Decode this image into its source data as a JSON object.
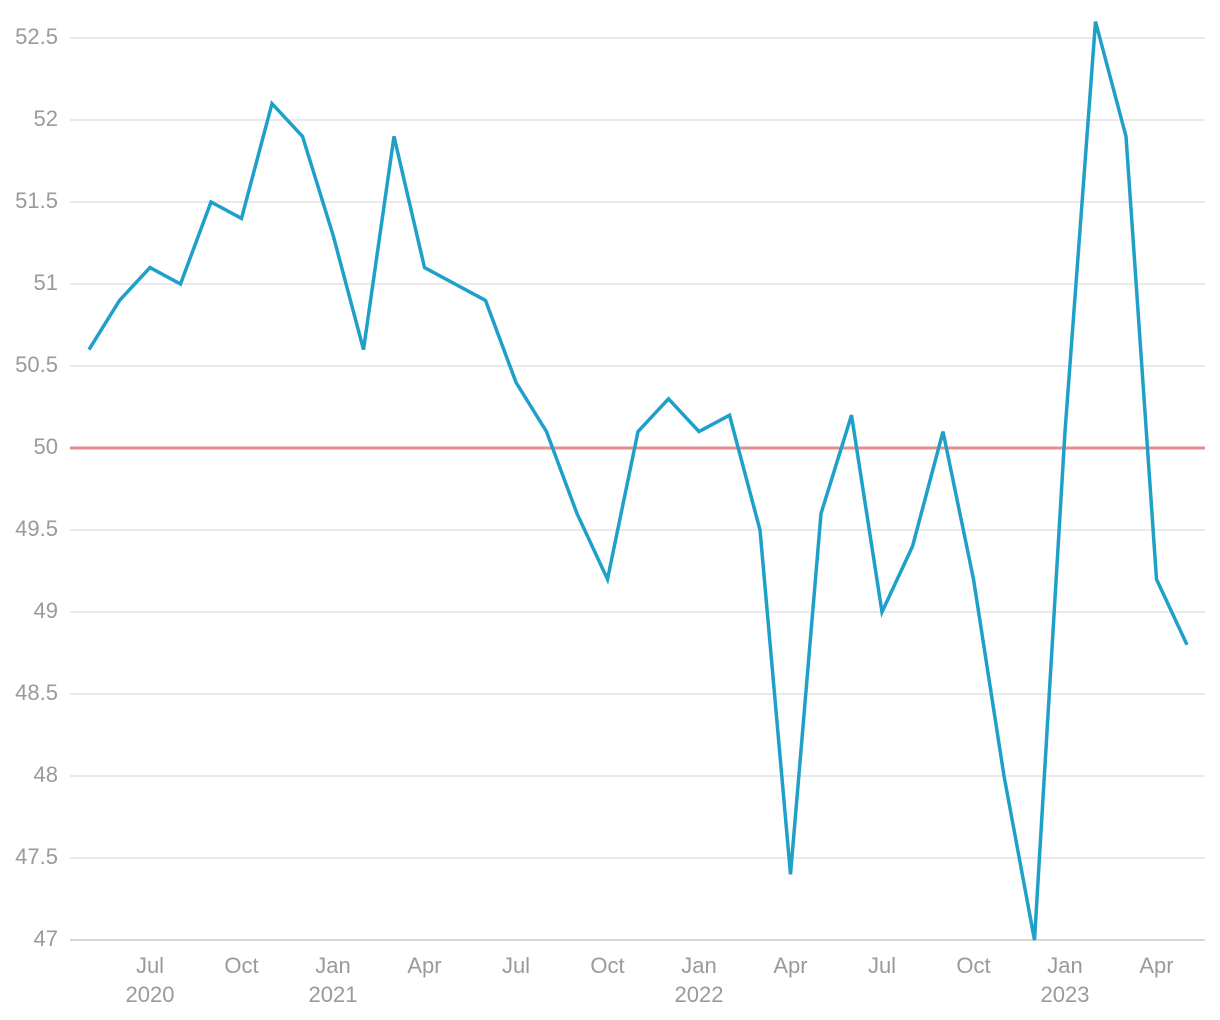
{
  "chart_data": {
    "type": "line",
    "x": [
      "2020-05",
      "2020-06",
      "2020-07",
      "2020-08",
      "2020-09",
      "2020-10",
      "2020-11",
      "2020-12",
      "2021-01",
      "2021-02",
      "2021-03",
      "2021-04",
      "2021-05",
      "2021-06",
      "2021-07",
      "2021-08",
      "2021-09",
      "2021-10",
      "2021-11",
      "2021-12",
      "2022-01",
      "2022-02",
      "2022-03",
      "2022-04",
      "2022-05",
      "2022-06",
      "2022-07",
      "2022-08",
      "2022-09",
      "2022-10",
      "2022-11",
      "2022-12",
      "2023-01",
      "2023-02",
      "2023-03",
      "2023-04",
      "2023-05"
    ],
    "series": [
      {
        "color": "#1fa0c9",
        "values": [
          50.6,
          50.9,
          51.1,
          51.0,
          51.5,
          51.4,
          52.1,
          51.9,
          51.3,
          50.6,
          51.9,
          51.1,
          51.0,
          50.9,
          50.4,
          50.1,
          49.6,
          49.2,
          50.1,
          50.3,
          50.1,
          50.2,
          49.5,
          47.4,
          49.6,
          50.2,
          49.0,
          49.4,
          50.1,
          49.2,
          48.0,
          47.0,
          50.1,
          52.6,
          51.9,
          49.2,
          48.8
        ]
      }
    ],
    "reference_line": {
      "value": 50,
      "color": "#e88d8d"
    },
    "ylim": [
      47,
      52.6
    ],
    "yticks": [
      47,
      47.5,
      48,
      48.5,
      49,
      49.5,
      50,
      50.5,
      51,
      51.5,
      52,
      52.5
    ],
    "xticks": [
      {
        "value": "2020-07",
        "label": "Jul"
      },
      {
        "value": "2020-10",
        "label": "Oct"
      },
      {
        "value": "2021-01",
        "label": "Jan"
      },
      {
        "value": "2021-04",
        "label": "Apr"
      },
      {
        "value": "2021-07",
        "label": "Jul"
      },
      {
        "value": "2021-10",
        "label": "Oct"
      },
      {
        "value": "2022-01",
        "label": "Jan"
      },
      {
        "value": "2022-04",
        "label": "Apr"
      },
      {
        "value": "2022-07",
        "label": "Jul"
      },
      {
        "value": "2022-10",
        "label": "Oct"
      },
      {
        "value": "2023-01",
        "label": "Jan"
      },
      {
        "value": "2023-04",
        "label": "Apr"
      }
    ],
    "xtick_years": [
      {
        "value": "2020-07",
        "label": "2020"
      },
      {
        "value": "2021-01",
        "label": "2021"
      },
      {
        "value": "2022-01",
        "label": "2022"
      },
      {
        "value": "2023-01",
        "label": "2023"
      }
    ],
    "grid": true
  }
}
